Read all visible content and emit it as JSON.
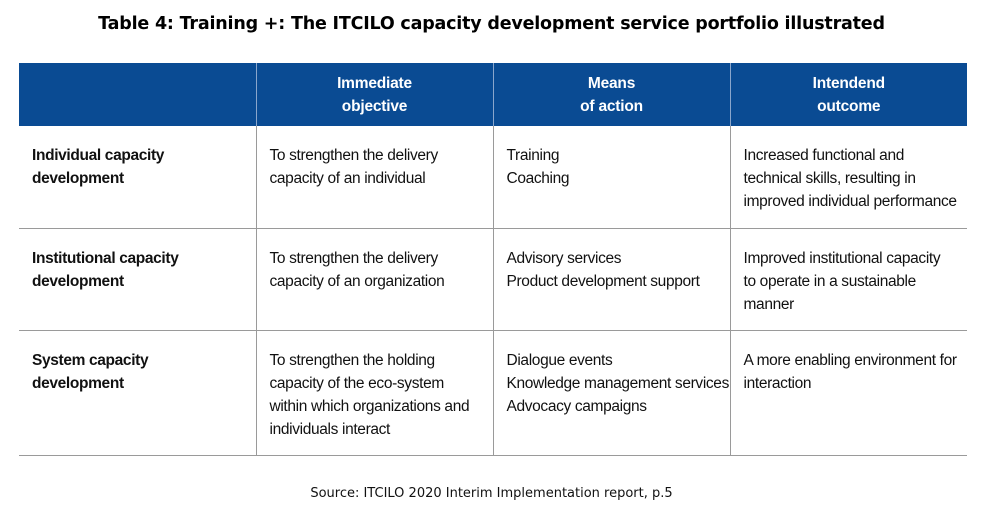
{
  "title": "Table 4: Training +: The ITCILO capacity development service portfolio illustrated",
  "table": {
    "headers": [
      [],
      [
        "Immediate",
        "objective"
      ],
      [
        "Means",
        "of action"
      ],
      [
        "Intendend",
        "outcome"
      ]
    ],
    "rows": [
      [
        [
          "Individual capacity",
          "development"
        ],
        [
          "To strengthen the delivery",
          "capacity of an individual"
        ],
        [
          "Training",
          "Coaching"
        ],
        [
          "Increased functional and",
          "technical skills, resulting in",
          "improved individual performance"
        ]
      ],
      [
        [
          "Institutional capacity",
          "development"
        ],
        [
          "To strengthen the delivery",
          "capacity of an organization"
        ],
        [
          "Advisory services",
          "Product development support"
        ],
        [
          "Improved institutional capacity",
          "to operate in a sustainable",
          "manner"
        ]
      ],
      [
        [
          "System capacity",
          "development"
        ],
        [
          "To strengthen the holding",
          "capacity of the eco-system",
          "within which organizations and",
          "individuals interact"
        ],
        [
          "Dialogue events",
          "Knowledge management services",
          "Advocacy campaigns"
        ],
        [
          "A more enabling environment for",
          "interaction"
        ]
      ]
    ]
  },
  "source": "Source: ITCILO 2020 Interim Implementation report, p.5",
  "colors": {
    "header_bg": "#0a4b93",
    "header_text": "#ffffff",
    "rule": "#9a9a9a"
  }
}
